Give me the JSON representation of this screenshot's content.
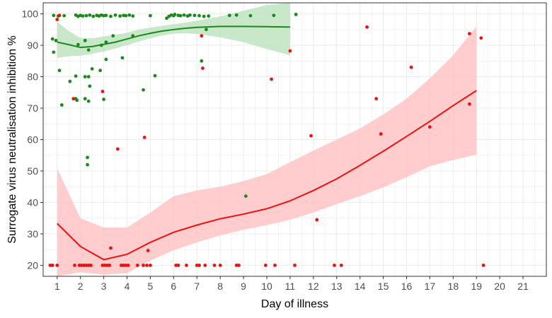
{
  "chart_data": {
    "type": "scatter",
    "xlabel": "Day of illness",
    "ylabel": "Surrogate virus neutralisation inhibition %",
    "xlim": [
      0.4,
      22.0
    ],
    "ylim": [
      16.5,
      103.5
    ],
    "x_ticks": [
      1,
      2,
      3,
      4,
      5,
      6,
      7,
      8,
      9,
      10,
      11,
      12,
      13,
      14,
      15,
      16,
      17,
      18,
      19,
      20,
      21
    ],
    "y_ticks": [
      20,
      30,
      40,
      50,
      60,
      70,
      80,
      90,
      100
    ],
    "grid": true,
    "legend": "none",
    "colors": {
      "green": "#1a8a1a",
      "red": "#ee1111",
      "green_band": "#bfe3bf",
      "red_band": "#ffc4c4"
    },
    "series": [
      {
        "color": "green",
        "points": [
          [
            0.85,
            99.5
          ],
          [
            1.05,
            99.3
          ],
          [
            1.3,
            99.4
          ],
          [
            1.8,
            99.6
          ],
          [
            1.9,
            99.2
          ],
          [
            2.0,
            99.5
          ],
          [
            2.1,
            99.3
          ],
          [
            2.25,
            99.4
          ],
          [
            2.4,
            99.6
          ],
          [
            2.55,
            99.2
          ],
          [
            2.7,
            99.5
          ],
          [
            2.8,
            99.3
          ],
          [
            2.9,
            99.6
          ],
          [
            3.0,
            99.4
          ],
          [
            3.1,
            99.5
          ],
          [
            3.3,
            99.2
          ],
          [
            3.5,
            99.6
          ],
          [
            3.7,
            99.3
          ],
          [
            3.85,
            99.5
          ],
          [
            3.95,
            99.4
          ],
          [
            4.1,
            99.6
          ],
          [
            4.25,
            99.3
          ],
          [
            5.0,
            99.4
          ],
          [
            5.7,
            98.6
          ],
          [
            5.8,
            99.2
          ],
          [
            5.9,
            99.6
          ],
          [
            6.0,
            99.4
          ],
          [
            6.05,
            99.8
          ],
          [
            6.2,
            99.5
          ],
          [
            6.3,
            99.4
          ],
          [
            6.45,
            99.6
          ],
          [
            6.6,
            99.3
          ],
          [
            6.7,
            99.6
          ],
          [
            6.9,
            99.5
          ],
          [
            7.1,
            99.4
          ],
          [
            7.3,
            99.2
          ],
          [
            7.5,
            99.3
          ],
          [
            8.4,
            99.5
          ],
          [
            8.7,
            99.6
          ],
          [
            9.3,
            99.4
          ],
          [
            10.3,
            99.5
          ],
          [
            11.25,
            99.8
          ],
          [
            0.95,
            91.5
          ],
          [
            0.8,
            92.0
          ],
          [
            0.85,
            87.8
          ],
          [
            1.9,
            90.2
          ],
          [
            2.2,
            91.5
          ],
          [
            2.35,
            88.5
          ],
          [
            2.9,
            90.0
          ],
          [
            3.1,
            91.0
          ],
          [
            3.4,
            93.0
          ],
          [
            4.25,
            93.0
          ],
          [
            3.1,
            85.5
          ],
          [
            3.8,
            86.0
          ],
          [
            2.5,
            82.5
          ],
          [
            2.85,
            82.0
          ],
          [
            2.2,
            80.0
          ],
          [
            2.35,
            80.0
          ],
          [
            1.55,
            78.5
          ],
          [
            1.1,
            82.0
          ],
          [
            1.8,
            80.2
          ],
          [
            2.4,
            77.0
          ],
          [
            5.2,
            80.3
          ],
          [
            4.7,
            75.8
          ],
          [
            3.0,
            72.8
          ],
          [
            1.85,
            72.5
          ],
          [
            1.2,
            71.0
          ],
          [
            2.35,
            72.2
          ],
          [
            2.2,
            73.0
          ],
          [
            2.3,
            54.3
          ],
          [
            2.3,
            52.0
          ],
          [
            7.2,
            85.0
          ],
          [
            7.4,
            95.0
          ],
          [
            9.1,
            42.0
          ],
          [
            1.8,
            73.0
          ]
        ]
      },
      {
        "color": "red",
        "points": [
          [
            1.1,
            99.5
          ],
          [
            1.0,
            98.2
          ],
          [
            7.2,
            93.0
          ],
          [
            11.0,
            88.2
          ],
          [
            14.3,
            95.8
          ],
          [
            18.7,
            93.7
          ],
          [
            19.2,
            92.3
          ],
          [
            7.25,
            82.7
          ],
          [
            10.2,
            79.2
          ],
          [
            16.2,
            83.0
          ],
          [
            1.7,
            73.0
          ],
          [
            2.95,
            75.3
          ],
          [
            14.7,
            73.0
          ],
          [
            18.7,
            71.3
          ],
          [
            3.6,
            57.0
          ],
          [
            4.75,
            60.7
          ],
          [
            11.9,
            61.2
          ],
          [
            14.9,
            61.8
          ],
          [
            17.0,
            64.0
          ],
          [
            12.15,
            34.5
          ],
          [
            3.3,
            25.5
          ],
          [
            4.9,
            24.7
          ],
          [
            0.7,
            20.0
          ],
          [
            0.8,
            20.0
          ],
          [
            1.0,
            20.0
          ],
          [
            1.75,
            20.0
          ],
          [
            1.95,
            20.0
          ],
          [
            2.05,
            20.0
          ],
          [
            2.15,
            20.0
          ],
          [
            2.25,
            20.0
          ],
          [
            2.35,
            20.0
          ],
          [
            2.45,
            20.0
          ],
          [
            2.95,
            20.0
          ],
          [
            3.05,
            20.0
          ],
          [
            3.15,
            20.0
          ],
          [
            3.25,
            20.0
          ],
          [
            3.75,
            20.0
          ],
          [
            3.85,
            20.0
          ],
          [
            3.95,
            20.0
          ],
          [
            4.05,
            20.0
          ],
          [
            4.45,
            20.0
          ],
          [
            4.7,
            20.0
          ],
          [
            4.85,
            20.0
          ],
          [
            5.0,
            20.0
          ],
          [
            6.1,
            20.0
          ],
          [
            6.2,
            20.0
          ],
          [
            6.55,
            20.0
          ],
          [
            7.0,
            20.0
          ],
          [
            7.1,
            20.0
          ],
          [
            7.35,
            20.0
          ],
          [
            7.75,
            20.0
          ],
          [
            8.0,
            20.0
          ],
          [
            8.7,
            20.0
          ],
          [
            8.8,
            20.0
          ],
          [
            9.95,
            20.0
          ],
          [
            10.35,
            20.0
          ],
          [
            11.2,
            20.0
          ],
          [
            12.9,
            20.0
          ],
          [
            13.2,
            20.0
          ],
          [
            19.3,
            20.0
          ]
        ]
      }
    ],
    "trend_lines": [
      {
        "color": "green",
        "x": [
          1.0,
          1.5,
          2.0,
          2.5,
          3.0,
          3.5,
          4.0,
          4.5,
          5.0,
          5.5,
          6.0,
          6.5,
          7.0,
          8.0,
          9.0,
          10.0,
          11.0
        ],
        "y": [
          91.0,
          90.2,
          89.3,
          89.6,
          90.3,
          91.0,
          92.0,
          93.0,
          93.8,
          94.5,
          95.0,
          95.4,
          95.7,
          96.0,
          96.0,
          95.9,
          95.8
        ],
        "lower": [
          86.0,
          86.5,
          86.7,
          87.3,
          88.0,
          89.0,
          90.0,
          91.2,
          92.2,
          93.1,
          93.7,
          93.8,
          93.6,
          92.5,
          91.0,
          88.8,
          86.8
        ],
        "upper": [
          97.5,
          94.5,
          92.3,
          92.2,
          92.8,
          93.3,
          94.0,
          95.0,
          95.6,
          96.2,
          96.7,
          97.2,
          97.8,
          99.2,
          101.0,
          102.8,
          103.5
        ]
      },
      {
        "color": "red",
        "x": [
          1.0,
          2.0,
          3.0,
          4.0,
          5.0,
          6.0,
          7.0,
          8.0,
          9.0,
          10.0,
          11.0,
          12.0,
          13.0,
          14.0,
          15.0,
          16.0,
          17.0,
          18.0,
          19.0
        ],
        "y": [
          33.3,
          26.0,
          21.8,
          23.5,
          27.3,
          30.5,
          32.8,
          34.8,
          36.3,
          38.0,
          40.5,
          43.8,
          47.5,
          51.8,
          56.3,
          61.0,
          65.8,
          70.8,
          75.6
        ],
        "lower": [
          16.5,
          17.8,
          17.0,
          17.5,
          21.5,
          24.8,
          27.3,
          29.5,
          31.3,
          32.8,
          34.5,
          36.8,
          39.5,
          42.0,
          44.8,
          48.0,
          51.5,
          53.5,
          55.2
        ],
        "upper": [
          50.8,
          35.0,
          32.0,
          32.0,
          36.8,
          42.0,
          43.8,
          45.0,
          46.8,
          49.0,
          52.8,
          56.5,
          60.0,
          63.5,
          68.0,
          73.0,
          79.5,
          86.8,
          96.0
        ]
      }
    ]
  }
}
